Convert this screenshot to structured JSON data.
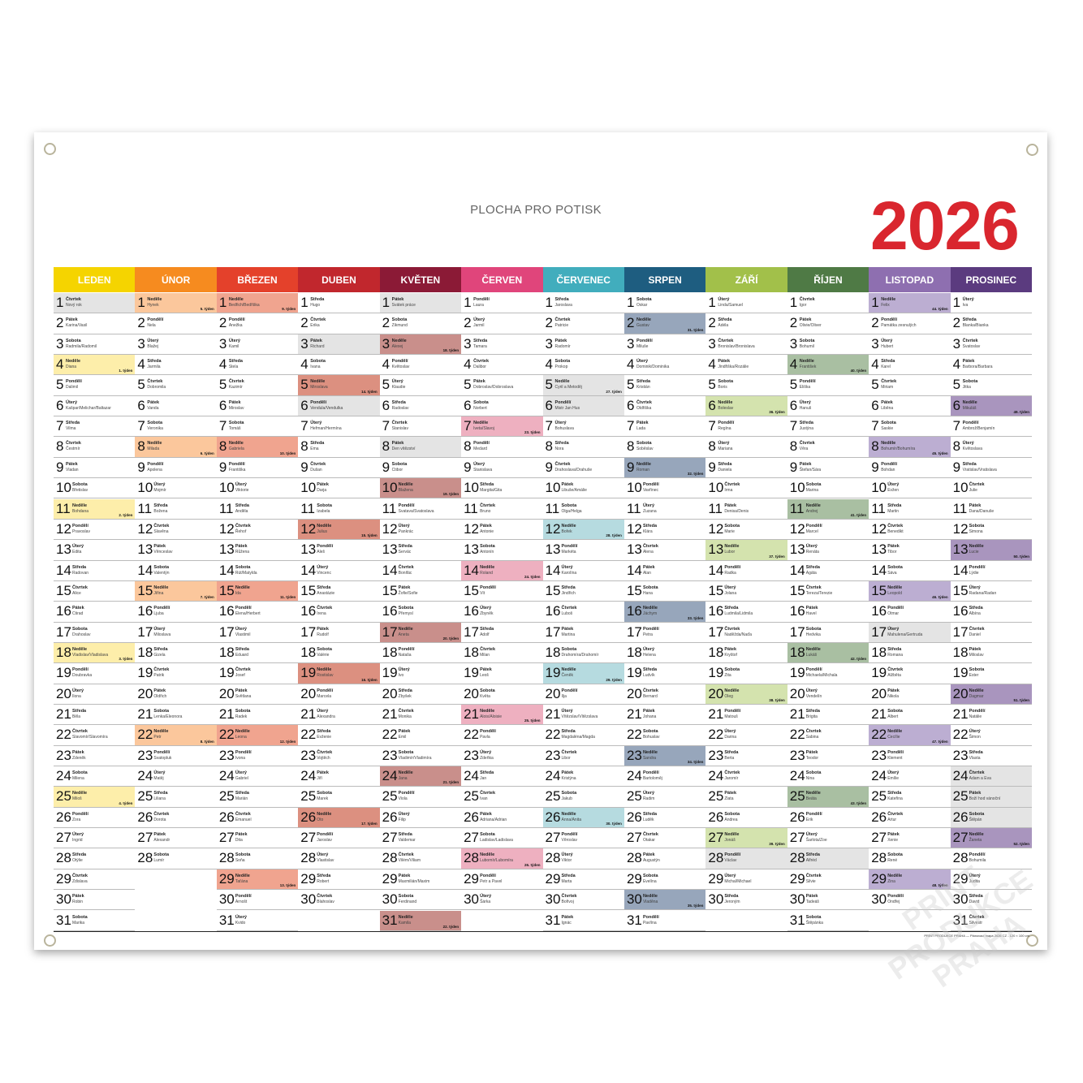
{
  "print_area_label": "PLOCHA PRO POTISK",
  "year": "2026",
  "year_color": "#d9262e",
  "holiday_color": "#e4e4e4",
  "week_suffix": ". týden",
  "footer": "PRINT PRODUKCE PRAHA — Plánovací mapa 2026 CZ - 120 × 100 cm",
  "watermark": "PRINT PRODUKCE PRAHA",
  "weekdays": [
    "Pondělí",
    "Úterý",
    "Středa",
    "Čtvrtek",
    "Pátek",
    "Sobota",
    "Neděle"
  ],
  "months": [
    {
      "name": "LEDEN",
      "color": "#f5d400",
      "tint": "#fdeeaa",
      "holidays": [
        1
      ],
      "days": [
        "Nový rok",
        "Karina/Vasil",
        "Radmila/Radomil",
        "Diana",
        "Dalimil",
        "Kašpar/Melichar/Baltazar",
        "Vilma",
        "Čestmír",
        "Vladan",
        "Břetislav",
        "Bohdana",
        "Pravoslav",
        "Edita",
        "Radovan",
        "Alice",
        "Ctirad",
        "Drahoslav",
        "Vladislav/Vladislava",
        "Doubravka",
        "Ilona",
        "Běla",
        "Slavomír/Slavomíra",
        "Zdeněk",
        "Milena",
        "Miloš",
        "Zora",
        "Ingrid",
        "Otýlie",
        "Zdislava",
        "Robin",
        "Marika"
      ]
    },
    {
      "name": "ÚNOR",
      "color": "#f68b1f",
      "tint": "#fbc79c",
      "holidays": [],
      "days": [
        "Hynek",
        "Nela",
        "Blažej",
        "Jarmila",
        "Dobromila",
        "Vanda",
        "Veronika",
        "Milada",
        "Apolena",
        "Mojmír",
        "Božena",
        "Slavěna",
        "Věnceslav",
        "Valentýn",
        "Jiřina",
        "Ljuba",
        "Miloslava",
        "Gizela",
        "Patrik",
        "Oldřich",
        "Lenka/Eleonora",
        "Petr",
        "Svatopluk",
        "Matěj",
        "Liliana",
        "Dorota",
        "Alexandr",
        "Lumír"
      ]
    },
    {
      "name": "BŘEZEN",
      "color": "#e4412b",
      "tint": "#f0a48f",
      "holidays": [],
      "days": [
        "Bedřich/Bedřiška",
        "Anežka",
        "Kamil",
        "Stela",
        "Kazimír",
        "Miroslav",
        "Tomáš",
        "Gabriela",
        "Františka",
        "Viktorie",
        "Anděla",
        "Řehoř",
        "Růžena",
        "Rút/Matylda",
        "Ida",
        "Elena/Herbert",
        "Vlastimil",
        "Eduard",
        "Josef",
        "Světlana",
        "Radek",
        "Leona",
        "Ivona",
        "Gabriel",
        "Marián",
        "Emanuel",
        "Dita",
        "Soňa",
        "Taťána",
        "Arnošt",
        "Kvido"
      ]
    },
    {
      "name": "DUBEN",
      "color": "#c1272d",
      "tint": "#dc9080",
      "holidays": [
        3,
        6
      ],
      "days": [
        "Hugo",
        "Erika",
        "Richard",
        "Ivana",
        "Miroslava",
        "Vendula/Vendulka",
        "Heřman/Hermína",
        "Ema",
        "Dušan",
        "Darja",
        "Izabela",
        "Julius",
        "Aleš",
        "Vincenc",
        "Anastázie",
        "Irena",
        "Rudolf",
        "Valérie",
        "Rostislav",
        "Marcela",
        "Alexandra",
        "Evženie",
        "Vojtěch",
        "Jiří",
        "Marek",
        "Oto",
        "Jaroslav",
        "Vlastislav",
        "Robert",
        "Blahoslav"
      ]
    },
    {
      "name": "KVĚTEN",
      "color": "#8b1a36",
      "tint": "#c98f8b",
      "holidays": [
        1,
        8
      ],
      "days": [
        "Svátek práce",
        "Zikmund",
        "Alexej",
        "Květoslav",
        "Klaudie",
        "Radoslav",
        "Stanislav",
        "Den vítězství",
        "Ctibor",
        "Blažena",
        "Svatava/Svatoslava",
        "Pankrác",
        "Servác",
        "Bonifác",
        "Žofie/Sofie",
        "Přemysl",
        "Aneta",
        "Nataša",
        "Ivo",
        "Zbyšek",
        "Monika",
        "Emil",
        "Vladimír/Vladimíra",
        "Jana",
        "Viola",
        "Filip",
        "Valdemar",
        "Vilém/Viliam",
        "Maxmilián/Maxim",
        "Ferdinand",
        "Kamila"
      ]
    },
    {
      "name": "ČERVEN",
      "color": "#e0457b",
      "tint": "#eeb0c0",
      "holidays": [],
      "days": [
        "Laura",
        "Jarmil",
        "Tamara",
        "Dalibor",
        "Dobroslav/Dobroslava",
        "Norbert",
        "Iveta/Slavoj",
        "Medard",
        "Stanislava",
        "Margita/Gita",
        "Bruno",
        "Antonie",
        "Antonín",
        "Roland",
        "Vít",
        "Zbyněk",
        "Adolf",
        "Milan",
        "Leoš",
        "Květa",
        "Alois/Aloisie",
        "Pavla",
        "Zdeňka",
        "Jan",
        "Ivan",
        "Adriana/Adrian",
        "Ladislav/Ladislava",
        "Lubomír/Lubomíra",
        "Petr a Pavel",
        "Šárka"
      ]
    },
    {
      "name": "ČERVENEC",
      "color": "#41adbd",
      "tint": "#b6dbe0",
      "holidays": [
        5,
        6
      ],
      "days": [
        "Jaroslava",
        "Patricie",
        "Radomír",
        "Prokop",
        "Cyril a Metoděj",
        "Mistr Jan Hus",
        "Bohuslava",
        "Nora",
        "Drahoslava/Drahuše",
        "Libuše/Amálie",
        "Olga/Helga",
        "Bořek",
        "Markéta",
        "Karolína",
        "Jindřich",
        "Luboš",
        "Martina",
        "Drahomíra/Drahomír",
        "Čeněk",
        "Ilja",
        "Vítězslav/Vítězslava",
        "Magdaléna/Magda",
        "Libor",
        "Kristýna",
        "Jakub",
        "Anna/Anita",
        "Věroslav",
        "Viktor",
        "Marta",
        "Bořivoj",
        "Ignác"
      ]
    },
    {
      "name": "SRPEN",
      "color": "#1e5d80",
      "tint": "#97a6bb",
      "holidays": [],
      "days": [
        "Oskar",
        "Gustav",
        "Miluše",
        "Dominik/Dominika",
        "Kristián",
        "Oldřiška",
        "Lada",
        "Soběslav",
        "Roman",
        "Vavřinec",
        "Zuzana",
        "Klára",
        "Alena",
        "Alan",
        "Hana",
        "Jáchym",
        "Petra",
        "Helena",
        "Ludvík",
        "Bernard",
        "Johana",
        "Bohuslav",
        "Sandra",
        "Bartoloměj",
        "Radim",
        "Luděk",
        "Otakar",
        "Augustýn",
        "Evelína",
        "Vladěna",
        "Pavlína"
      ]
    },
    {
      "name": "ZÁŘÍ",
      "color": "#a2c04a",
      "tint": "#d4e3ae",
      "holidays": [
        28
      ],
      "days": [
        "Linda/Samuel",
        "Adéla",
        "Bronislav/Bronislava",
        "Jindřiška/Rozálie",
        "Boris",
        "Boleslav",
        "Regína",
        "Mariana",
        "Daniela",
        "Irma",
        "Denisa/Denis",
        "Marie",
        "Lubor",
        "Radka",
        "Jolana",
        "Ludmila/Lidmila",
        "Naděžda/Naďa",
        "Kryštof",
        "Zita",
        "Oleg",
        "Matouš",
        "Darina",
        "Berta",
        "Jaromír",
        "Zlata",
        "Andrea",
        "Jonáš",
        "Václav",
        "Michal/Michael",
        "Jeroným"
      ]
    },
    {
      "name": "ŘÍJEN",
      "color": "#4f7a45",
      "tint": "#a9bfa2",
      "holidays": [
        28
      ],
      "days": [
        "Igor",
        "Olivie/Oliver",
        "Bohumil",
        "František",
        "Eliška",
        "Hanuš",
        "Justýna",
        "Věra",
        "Štefan/Sára",
        "Marina",
        "Andrej",
        "Marcel",
        "Renáta",
        "Agáta",
        "Tereza/Terezie",
        "Havel",
        "Hedvika",
        "Lukáš",
        "Michaela/Michala",
        "Vendelín",
        "Brigita",
        "Sabina",
        "Teodor",
        "Nina",
        "Beáta",
        "Erik",
        "Šarlota/Zoe",
        "Alfréd",
        "Silvie",
        "Tadeáš",
        "Štěpánka"
      ]
    },
    {
      "name": "LISTOPAD",
      "color": "#8e6fb0",
      "tint": "#bcaed2",
      "holidays": [
        17
      ],
      "days": [
        "Felix",
        "Památka zesnulých",
        "Hubert",
        "Karel",
        "Miriam",
        "Liběna",
        "Saskie",
        "Bohumír/Bohumíra",
        "Bohdan",
        "Evžen",
        "Martin",
        "Benedikt",
        "Tibor",
        "Sáva",
        "Leopold",
        "Otmar",
        "Mahulena/Gertruda",
        "Romana",
        "Alžběta",
        "Nikola",
        "Albert",
        "Cecílie",
        "Klement",
        "Emílie",
        "Kateřina",
        "Artur",
        "Xenie",
        "René",
        "Zina",
        "Ondřej"
      ]
    },
    {
      "name": "PROSINEC",
      "color": "#5b3b7f",
      "tint": "#a995be",
      "holidays": [
        24,
        25,
        26
      ],
      "days": [
        "Iva",
        "Blanka/Bianka",
        "Svatoslav",
        "Barbora/Barbara",
        "Jitka",
        "Mikuláš",
        "Ambrož/Benjamín",
        "Květoslava",
        "Vratislav/Vratislava",
        "Julie",
        "Dana/Danuše",
        "Simona",
        "Lucie",
        "Lýdie",
        "Radana/Radan",
        "Albína",
        "Daniel",
        "Miloslav",
        "Ester",
        "Dagmar",
        "Natálie",
        "Šimon",
        "Vlasta",
        "Adam a Eva",
        "Boží hod vánoční",
        "Štěpán",
        "Žaneta",
        "Bohumila",
        "Judita",
        "David",
        "Silvestr"
      ]
    }
  ]
}
